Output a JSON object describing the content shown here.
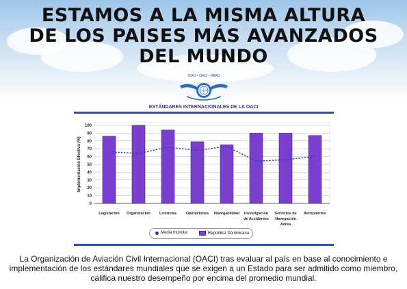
{
  "headline": {
    "line1": "ESTAMOS A LA MISMA ALTURA",
    "line2": "DE LOS PAISES MÁS AVANZADOS",
    "line3": "DEL MUNDO"
  },
  "logo": {
    "text_top": "ICAO • OACI • ИКАО",
    "icon": "icao-emblem-icon"
  },
  "chart_data": {
    "type": "bar",
    "title": "ESTÁNDARES INTERNACIONALES DE LA OACI",
    "ylabel": "Implementación Efectiva (%)",
    "xlabel": "",
    "ylim": [
      0,
      100
    ],
    "yticks": [
      0,
      10,
      20,
      30,
      40,
      50,
      60,
      70,
      80,
      90,
      100
    ],
    "grid": true,
    "categories": [
      [
        "Legislación"
      ],
      [
        "Organización"
      ],
      [
        "Licencias"
      ],
      [
        "Operaciones"
      ],
      [
        "Navegabilidad"
      ],
      [
        "Investigación",
        "de Accidentes"
      ],
      [
        "Servicios de",
        "Navegación",
        "Aérea"
      ],
      [
        "Aeropuertos"
      ]
    ],
    "series": [
      {
        "name": "República Dominicana",
        "type": "bar",
        "color": "#7b3fd0",
        "values": [
          86,
          100,
          94,
          79,
          75,
          90,
          90,
          87
        ]
      },
      {
        "name": "Media mundial",
        "type": "line",
        "color": "#2a3fb0",
        "values": [
          66,
          64,
          72,
          68,
          73,
          54,
          56,
          60
        ]
      }
    ],
    "legend_position": "bottom-center"
  },
  "caption": "La Organización de Aviación Civil Internacional (OACI) tras evaluar al país en base al conocimiento e implementación de los estándares mundiales que se exigen a un Estado para ser admitido como miembro, califica nuestro desempeño por encima del promedio mundial."
}
